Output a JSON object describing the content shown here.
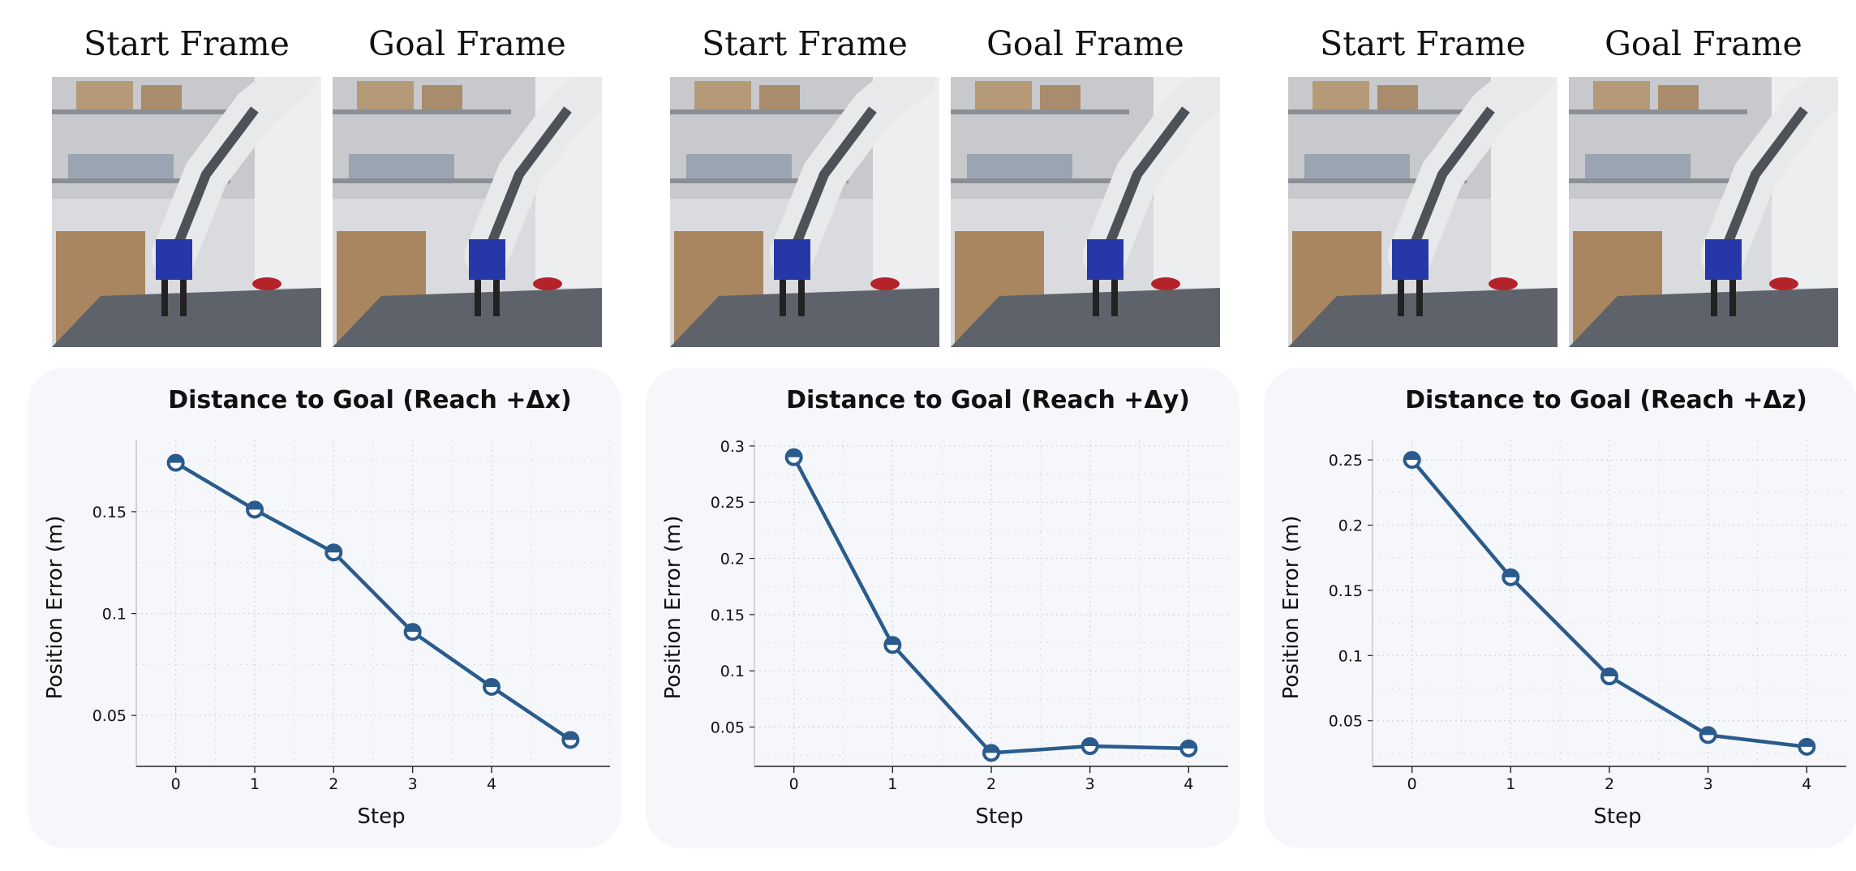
{
  "colors": {
    "line": "#2a5b8c",
    "grid": "#cfd5dc",
    "panel": "#f5f7fa",
    "axis": "#222222"
  },
  "frame_labels": {
    "start": "Start Frame",
    "goal": "Goal Frame"
  },
  "chart_data": [
    {
      "type": "line",
      "title": "Distance to Goal (Reach +Δx)",
      "xlabel": "Step",
      "ylabel": "Position Error (m)",
      "x": [
        0,
        1,
        2,
        3,
        4,
        5
      ],
      "values": [
        0.174,
        0.151,
        0.13,
        0.091,
        0.064,
        0.038
      ],
      "xticks": [
        0,
        1,
        2,
        3,
        4
      ],
      "yticks": [
        0.05,
        0.1,
        0.15
      ],
      "ytick_labels": [
        "0.05",
        "0.1",
        "0.15"
      ],
      "xlim": [
        -0.5,
        5.5
      ],
      "ylim": [
        0.025,
        0.185
      ]
    },
    {
      "type": "line",
      "title": "Distance to Goal (Reach +Δy)",
      "xlabel": "Step",
      "ylabel": "Position Error (m)",
      "x": [
        0,
        1,
        2,
        3,
        4
      ],
      "values": [
        0.29,
        0.123,
        0.027,
        0.033,
        0.031
      ],
      "xticks": [
        0,
        1,
        2,
        3,
        4
      ],
      "yticks": [
        0.05,
        0.1,
        0.15,
        0.2,
        0.25,
        0.3
      ],
      "ytick_labels": [
        "0.05",
        "0.1",
        "0.15",
        "0.2",
        "0.25",
        "0.3"
      ],
      "xlim": [
        -0.4,
        4.4
      ],
      "ylim": [
        0.015,
        0.305
      ]
    },
    {
      "type": "line",
      "title": "Distance to Goal (Reach +Δz)",
      "xlabel": "Step",
      "ylabel": "Position Error (m)",
      "x": [
        0,
        1,
        2,
        3,
        4
      ],
      "values": [
        0.25,
        0.16,
        0.084,
        0.039,
        0.03
      ],
      "xticks": [
        0,
        1,
        2,
        3,
        4
      ],
      "yticks": [
        0.05,
        0.1,
        0.15,
        0.2,
        0.25
      ],
      "ytick_labels": [
        "0.05",
        "0.1",
        "0.15",
        "0.2",
        "0.25"
      ],
      "xlim": [
        -0.4,
        4.4
      ],
      "ylim": [
        0.015,
        0.265
      ]
    }
  ]
}
